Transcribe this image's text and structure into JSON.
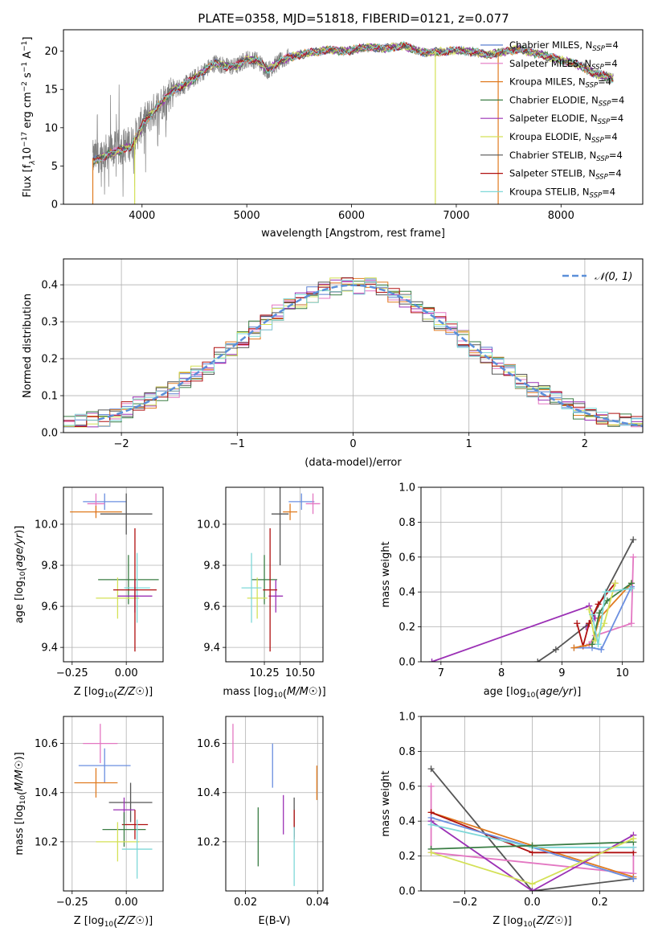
{
  "title": "PLATE=0358, MJD=51818, FIBERID=0121, z=0.077",
  "colors": {
    "chabrier_miles": "#4c72b0",
    "salpeter_miles": "#55a868",
    "kroupa_miles": "#e07b20",
    "chabrier_elodie": "#3a7d44",
    "salpeter_elodie": "#9b30b5",
    "kroupa_elodie": "#d4e157",
    "chabrier_stelib": "#555555",
    "salpeter_stelib": "#b01010",
    "kroupa_stelib": "#7fd8d8",
    "miles_blue": "#6b8fe0",
    "pink": "#e377c2",
    "gaussian": "#5b8fd9"
  },
  "legend": {
    "spectrum": [
      {
        "label": "Chabrier MILES, N",
        "sub": "SSP",
        "suffix": "=4",
        "color": "#5a7fd0"
      },
      {
        "label": "Salpeter MILES, N",
        "sub": "SSP",
        "suffix": "=4",
        "color": "#e377c2"
      },
      {
        "label": "Kroupa MILES, N",
        "sub": "SSP",
        "suffix": "=4",
        "color": "#e07b20"
      },
      {
        "label": "Chabrier ELODIE, N",
        "sub": "SSP",
        "suffix": "=4",
        "color": "#3a7d44"
      },
      {
        "label": "Salpeter ELODIE, N",
        "sub": "SSP",
        "suffix": "=4",
        "color": "#9b30b5"
      },
      {
        "label": "Kroupa ELODIE, N",
        "sub": "SSP",
        "suffix": "=4",
        "color": "#d4e157"
      },
      {
        "label": "Chabrier STELIB, N",
        "sub": "SSP",
        "suffix": "=4",
        "color": "#555555"
      },
      {
        "label": "Salpeter STELIB, N",
        "sub": "SSP",
        "suffix": "=4",
        "color": "#b01010"
      },
      {
        "label": "Kroupa STELIB, N",
        "sub": "SSP",
        "suffix": "=4",
        "color": "#7fd8d8"
      }
    ],
    "gaussian": "𝒩(0, 1)"
  },
  "chart_data": [
    {
      "type": "line",
      "id": "spectrum",
      "xlabel": "wavelength [Angstrom, rest frame]",
      "ylabel": "Flux [f_λ 10^-17 erg cm^-2 s^-1 A^-1]",
      "ylabel_parts": [
        "Flux [f",
        "λ",
        "10",
        "−17",
        " erg cm",
        "−2",
        " s",
        "−1",
        " A",
        "−1",
        "]"
      ],
      "xlim": [
        3250,
        8780
      ],
      "ylim": [
        0,
        22.8
      ],
      "xticks": [
        4000,
        5000,
        6000,
        7000,
        8000
      ],
      "yticks": [
        0,
        5,
        10,
        15,
        20
      ],
      "grid": false,
      "legend_position": "right",
      "envelope": {
        "x": [
          3530,
          3600,
          3700,
          3800,
          3900,
          4000,
          4100,
          4200,
          4300,
          4400,
          4500,
          4600,
          4700,
          4800,
          4900,
          5000,
          5100,
          5200,
          5300,
          5400,
          5500,
          5600,
          5700,
          5800,
          5900,
          6000,
          6100,
          6200,
          6300,
          6400,
          6500,
          6600,
          6700,
          6800,
          6900,
          7000,
          7100,
          7200,
          7300,
          7400,
          7500,
          7600,
          7700,
          7800,
          7900,
          8000,
          8100,
          8200,
          8300,
          8400,
          8500
        ],
        "y": [
          6.0,
          6.5,
          7.0,
          7.5,
          8.0,
          10.5,
          12.0,
          13.5,
          15.0,
          15.5,
          16.5,
          17.5,
          18.5,
          18.0,
          18.0,
          19.0,
          18.8,
          17.5,
          18.5,
          19.2,
          19.5,
          19.8,
          20.0,
          20.2,
          20.0,
          20.1,
          20.4,
          20.5,
          20.3,
          20.5,
          20.7,
          20.2,
          19.8,
          19.9,
          20.0,
          20.1,
          20.0,
          19.8,
          19.5,
          19.8,
          20.0,
          20.3,
          19.8,
          19.6,
          19.2,
          18.8,
          18.5,
          18.0,
          17.2,
          16.8,
          16.4
        ]
      },
      "dropouts": [
        {
          "x": 3530,
          "y": 0,
          "series": "Salpeter STELIB"
        },
        {
          "x": 3930,
          "y": 0,
          "series": "Kroupa ELODIE"
        },
        {
          "x": 6800,
          "y": 0,
          "series": "Kroupa ELODIE"
        },
        {
          "x": 7400,
          "y": 0,
          "series": "Salpeter STELIB"
        }
      ]
    },
    {
      "type": "histogram",
      "id": "residuals",
      "xlabel": "(data-model)/error",
      "ylabel": "Normed distribution",
      "xlim": [
        -2.5,
        2.5
      ],
      "ylim": [
        0,
        0.47
      ],
      "xticks": [
        -2,
        -1,
        0,
        1,
        2
      ],
      "yticks": [
        0.0,
        0.1,
        0.2,
        0.3,
        0.4
      ],
      "grid": true,
      "legend_position": "top-right",
      "bin_width": 0.1,
      "gaussian": {
        "mean": 0,
        "sigma": 1,
        "style": "dashed"
      }
    },
    {
      "type": "errorbar",
      "id": "age_vs_Z",
      "xlabel": "Z [log10(Z/Z☉)]",
      "ylabel": "age [log10(age/yr)]",
      "xlim": [
        -0.29,
        0.17
      ],
      "ylim": [
        9.33,
        10.18
      ],
      "xticks": [
        -0.25,
        0.0
      ],
      "yticks": [
        9.4,
        9.6,
        9.8,
        10.0
      ],
      "grid": true,
      "points": [
        {
          "x": -0.1,
          "xerr": 0.1,
          "y": 10.11,
          "yerr": 0.04,
          "color": "#6b8fe0"
        },
        {
          "x": -0.14,
          "xerr": 0.04,
          "y": 10.1,
          "yerr": 0.05,
          "color": "#e377c2"
        },
        {
          "x": -0.14,
          "xerr": 0.12,
          "y": 10.06,
          "yerr": 0.03,
          "color": "#e07b20"
        },
        {
          "x": 0.0,
          "xerr": 0.12,
          "y": 10.05,
          "yerr": 0.1,
          "color": "#555555"
        },
        {
          "x": 0.01,
          "xerr": 0.14,
          "y": 9.73,
          "yerr": 0.12,
          "color": "#3a7d44"
        },
        {
          "x": -0.04,
          "xerr": 0.1,
          "y": 9.64,
          "yerr": 0.1,
          "color": "#d4e157"
        },
        {
          "x": 0.05,
          "xerr": 0.06,
          "y": 9.69,
          "yerr": 0.17,
          "color": "#7fd8d8"
        },
        {
          "x": 0.04,
          "xerr": 0.08,
          "y": 9.65,
          "yerr": 0.08,
          "color": "#9b30b5"
        },
        {
          "x": 0.04,
          "xerr": 0.1,
          "y": 9.68,
          "yerr": 0.3,
          "color": "#b01010"
        }
      ]
    },
    {
      "type": "errorbar",
      "id": "age_vs_mass",
      "xlabel": "mass [log10(M/M☉)]",
      "xlim": [
        9.98,
        10.66
      ],
      "ylim": [
        9.33,
        10.18
      ],
      "xticks": [
        10.25,
        10.5
      ],
      "yticks": [
        9.4,
        9.6,
        9.8,
        10.0
      ],
      "grid": true,
      "points": [
        {
          "x": 10.51,
          "xerr": 0.09,
          "y": 10.11,
          "yerr": 0.04,
          "color": "#6b8fe0"
        },
        {
          "x": 10.59,
          "xerr": 0.05,
          "y": 10.1,
          "yerr": 0.05,
          "color": "#e377c2"
        },
        {
          "x": 10.43,
          "xerr": 0.05,
          "y": 10.06,
          "yerr": 0.04,
          "color": "#e07b20"
        },
        {
          "x": 10.36,
          "xerr": 0.06,
          "y": 10.05,
          "yerr": 0.25,
          "color": "#555555"
        },
        {
          "x": 10.25,
          "xerr": 0.09,
          "y": 9.73,
          "yerr": 0.12,
          "color": "#3a7d44"
        },
        {
          "x": 10.2,
          "xerr": 0.07,
          "y": 9.64,
          "yerr": 0.1,
          "color": "#d4e157"
        },
        {
          "x": 10.16,
          "xerr": 0.07,
          "y": 9.69,
          "yerr": 0.17,
          "color": "#7fd8d8"
        },
        {
          "x": 10.33,
          "xerr": 0.05,
          "y": 9.65,
          "yerr": 0.08,
          "color": "#9b30b5"
        },
        {
          "x": 10.29,
          "xerr": 0.05,
          "y": 9.68,
          "yerr": 0.3,
          "color": "#b01010"
        }
      ]
    },
    {
      "type": "line",
      "id": "weight_vs_age",
      "xlabel": "age [log10(age/yr)]",
      "ylabel": "mass weight",
      "xlim": [
        6.67,
        10.35
      ],
      "ylim": [
        0,
        1.0
      ],
      "xticks": [
        7,
        8,
        9,
        10
      ],
      "yticks": [
        0.0,
        0.2,
        0.4,
        0.6,
        0.8,
        1.0
      ],
      "grid": true,
      "series": [
        {
          "color": "#9b30b5",
          "x": [
            6.85,
            9.45,
            9.55,
            9.4
          ],
          "y": [
            0.0,
            0.32,
            0.25,
            0.2
          ]
        },
        {
          "color": "#555555",
          "x": [
            8.6,
            8.9,
            9.45,
            10.18
          ],
          "y": [
            0.0,
            0.07,
            0.22,
            0.7
          ]
        },
        {
          "color": "#b01010",
          "x": [
            9.25,
            9.35,
            9.45,
            9.6,
            9.88
          ],
          "y": [
            0.22,
            0.09,
            0.22,
            0.33,
            0.45
          ]
        },
        {
          "color": "#e377c2",
          "x": [
            9.45,
            9.55,
            10.15,
            10.18
          ],
          "y": [
            0.1,
            0.15,
            0.22,
            0.6
          ]
        },
        {
          "color": "#6b8fe0",
          "x": [
            9.2,
            9.5,
            9.65,
            10.15
          ],
          "y": [
            0.08,
            0.08,
            0.07,
            0.43
          ]
        },
        {
          "color": "#e07b20",
          "x": [
            9.2,
            9.5,
            9.62,
            10.15
          ],
          "y": [
            0.08,
            0.1,
            0.25,
            0.45
          ]
        },
        {
          "color": "#3a7d44",
          "x": [
            9.5,
            9.62,
            9.75,
            10.15
          ],
          "y": [
            0.1,
            0.28,
            0.35,
            0.45
          ]
        },
        {
          "color": "#d4e157",
          "x": [
            9.45,
            9.55,
            9.7,
            9.88
          ],
          "y": [
            0.3,
            0.12,
            0.22,
            0.45
          ]
        },
        {
          "color": "#7fd8d8",
          "x": [
            9.5,
            9.6,
            9.72,
            10.15
          ],
          "y": [
            0.27,
            0.1,
            0.4,
            0.42
          ]
        }
      ]
    },
    {
      "type": "errorbar",
      "id": "mass_vs_Z",
      "xlabel": "Z [log10(Z/Z☉)]",
      "ylabel": "mass [log10(M/M☉)]",
      "xlim": [
        -0.29,
        0.17
      ],
      "ylim": [
        10.0,
        10.71
      ],
      "xticks": [
        -0.25,
        0.0
      ],
      "yticks": [
        10.2,
        10.4,
        10.6
      ],
      "grid": true,
      "points": [
        {
          "x": -0.12,
          "xerr": 0.08,
          "y": 10.6,
          "yerr": 0.08,
          "color": "#e377c2"
        },
        {
          "x": -0.1,
          "xerr": 0.12,
          "y": 10.51,
          "yerr": 0.07,
          "color": "#6b8fe0"
        },
        {
          "x": -0.14,
          "xerr": 0.1,
          "y": 10.44,
          "yerr": 0.06,
          "color": "#e07b20"
        },
        {
          "x": 0.02,
          "xerr": 0.1,
          "y": 10.36,
          "yerr": 0.08,
          "color": "#555555"
        },
        {
          "x": -0.01,
          "xerr": 0.05,
          "y": 10.33,
          "yerr": 0.05,
          "color": "#9b30b5"
        },
        {
          "x": 0.04,
          "xerr": 0.06,
          "y": 10.27,
          "yerr": 0.06,
          "color": "#b01010"
        },
        {
          "x": -0.01,
          "xerr": 0.1,
          "y": 10.25,
          "yerr": 0.07,
          "color": "#3a7d44"
        },
        {
          "x": -0.04,
          "xerr": 0.1,
          "y": 10.2,
          "yerr": 0.08,
          "color": "#d4e157"
        },
        {
          "x": 0.05,
          "xerr": 0.07,
          "y": 10.17,
          "yerr": 0.12,
          "color": "#7fd8d8"
        }
      ]
    },
    {
      "type": "errorbar",
      "id": "mass_vs_ebv",
      "xlabel": "E(B-V)",
      "xlim": [
        0.0145,
        0.0415
      ],
      "ylim": [
        10.0,
        10.71
      ],
      "xticks": [
        0.02,
        0.04
      ],
      "yticks": [
        10.2,
        10.4,
        10.6
      ],
      "grid": true,
      "points": [
        {
          "x": 0.0165,
          "xerr": 0.0,
          "y": 10.6,
          "yerr": 0.08,
          "color": "#e377c2"
        },
        {
          "x": 0.0275,
          "xerr": 0.0,
          "y": 10.51,
          "yerr": 0.09,
          "color": "#6b8fe0"
        },
        {
          "x": 0.0398,
          "xerr": 0.0,
          "y": 10.44,
          "yerr": 0.07,
          "color": "#e07b20"
        },
        {
          "x": 0.0335,
          "xerr": 0.0,
          "y": 10.3,
          "yerr": 0.08,
          "color": "#555555"
        },
        {
          "x": 0.0305,
          "xerr": 0.0,
          "y": 10.31,
          "yerr": 0.08,
          "color": "#9b30b5"
        },
        {
          "x": 0.0335,
          "xerr": 0.0,
          "y": 10.27,
          "yerr": 0.06,
          "color": "#b01010"
        },
        {
          "x": 0.0235,
          "xerr": 0.0,
          "y": 10.22,
          "yerr": 0.12,
          "color": "#3a7d44"
        },
        {
          "x": 0.0335,
          "xerr": 0.0,
          "y": 10.14,
          "yerr": 0.12,
          "color": "#7fd8d8"
        }
      ]
    },
    {
      "type": "line",
      "id": "weight_vs_Z",
      "xlabel": "Z [log10(Z/Z☉)]",
      "ylabel": "mass weight",
      "xlim": [
        -0.33,
        0.33
      ],
      "ylim": [
        0,
        1.0
      ],
      "xticks": [
        -0.2,
        0.0,
        0.2
      ],
      "yticks": [
        0.0,
        0.2,
        0.4,
        0.6,
        0.8,
        1.0
      ],
      "grid": true,
      "series": [
        {
          "color": "#555555",
          "x": [
            -0.3,
            0.0,
            0.3
          ],
          "y": [
            0.7,
            0.0,
            0.07
          ]
        },
        {
          "color": "#e377c2",
          "x": [
            -0.3,
            -0.3,
            0.3,
            0.3
          ],
          "y": [
            0.6,
            0.22,
            0.1,
            0.25
          ]
        },
        {
          "color": "#e07b20",
          "x": [
            -0.3,
            0.0,
            0.3
          ],
          "y": [
            0.45,
            0.26,
            0.08
          ]
        },
        {
          "color": "#b01010",
          "x": [
            -0.3,
            0.0,
            0.3
          ],
          "y": [
            0.45,
            0.22,
            0.22
          ]
        },
        {
          "color": "#6b8fe0",
          "x": [
            -0.3,
            0.0,
            0.3
          ],
          "y": [
            0.42,
            0.25,
            0.07
          ]
        },
        {
          "color": "#9b30b5",
          "x": [
            -0.3,
            0.0,
            0.3
          ],
          "y": [
            0.4,
            0.0,
            0.32
          ]
        },
        {
          "color": "#7fd8d8",
          "x": [
            -0.3,
            0.0,
            0.3
          ],
          "y": [
            0.38,
            0.25,
            0.25
          ]
        },
        {
          "color": "#3a7d44",
          "x": [
            -0.3,
            0.0,
            0.3
          ],
          "y": [
            0.24,
            0.26,
            0.28
          ]
        },
        {
          "color": "#d4e157",
          "x": [
            -0.3,
            0.0,
            0.3
          ],
          "y": [
            0.22,
            0.04,
            0.3
          ]
        }
      ]
    }
  ]
}
